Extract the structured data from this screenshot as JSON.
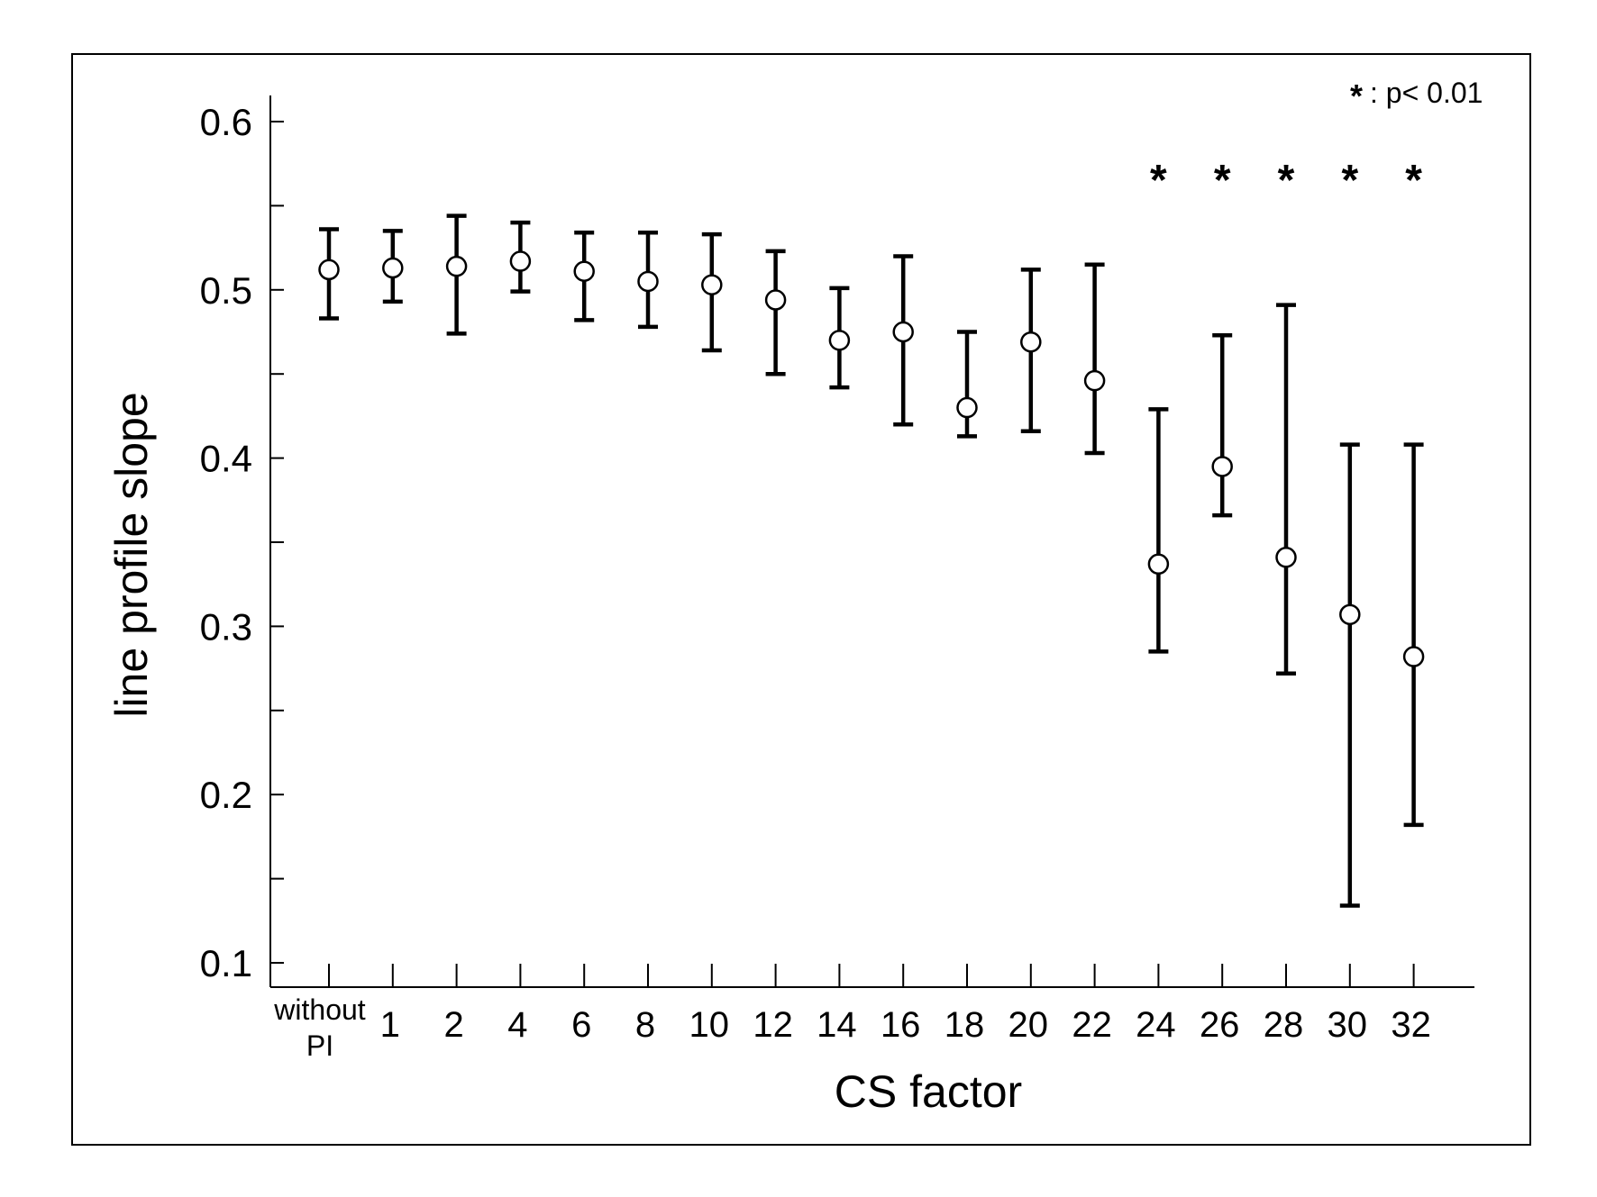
{
  "chart_data": {
    "type": "scatter",
    "title": "",
    "xlabel": "CS factor",
    "ylabel": "line profile slope",
    "ylim": [
      0.1,
      0.6
    ],
    "y_ticks": [
      "0.1",
      "0.2",
      "0.3",
      "0.4",
      "0.5",
      "0.6"
    ],
    "categories": [
      [
        "without",
        "PI"
      ],
      [
        "1"
      ],
      [
        "2"
      ],
      [
        "4"
      ],
      [
        "6"
      ],
      [
        "8"
      ],
      [
        "10"
      ],
      [
        "12"
      ],
      [
        "14"
      ],
      [
        "16"
      ],
      [
        "18"
      ],
      [
        "20"
      ],
      [
        "22"
      ],
      [
        "24"
      ],
      [
        "26"
      ],
      [
        "28"
      ],
      [
        "30"
      ],
      [
        "32"
      ]
    ],
    "series": [
      {
        "values": [
          0.512,
          0.513,
          0.514,
          0.517,
          0.511,
          0.505,
          0.503,
          0.494,
          0.47,
          0.475,
          0.43,
          0.469,
          0.446,
          0.337,
          0.395,
          0.341,
          0.307,
          0.282
        ],
        "error_low": [
          0.483,
          0.493,
          0.474,
          0.499,
          0.482,
          0.478,
          0.464,
          0.45,
          0.442,
          0.42,
          0.413,
          0.416,
          0.403,
          0.285,
          0.366,
          0.272,
          0.134,
          0.182
        ],
        "error_high": [
          0.536,
          0.535,
          0.544,
          0.54,
          0.534,
          0.534,
          0.533,
          0.523,
          0.501,
          0.52,
          0.475,
          0.512,
          0.515,
          0.429,
          0.473,
          0.491,
          0.408,
          0.408
        ],
        "marker": "open-circle",
        "color": "#000000"
      }
    ],
    "significance_marks": [
      false,
      false,
      false,
      false,
      false,
      false,
      false,
      false,
      false,
      false,
      false,
      false,
      false,
      true,
      true,
      true,
      true,
      true
    ],
    "significance_symbol": "*",
    "annotation": {
      "symbol": "*",
      "text": ": p< 0.01",
      "position": "top-right"
    },
    "grid": false,
    "legend": "none"
  }
}
